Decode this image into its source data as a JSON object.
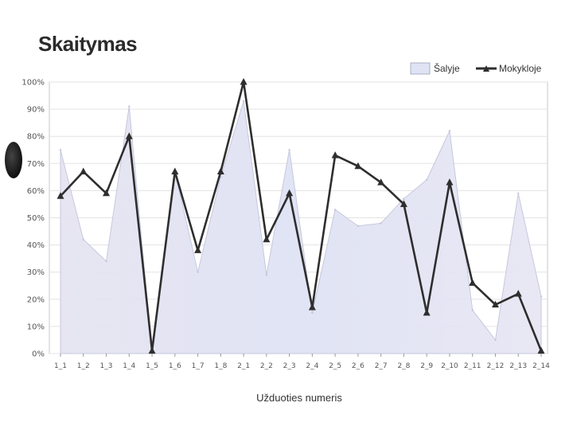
{
  "chart_data": {
    "type": "line",
    "title": "Skaitymas",
    "xlabel": "Užduoties numeris",
    "ylabel": "",
    "ylim": [
      0,
      1
    ],
    "y_ticks": [
      "0%",
      "10%",
      "20%",
      "30%",
      "40%",
      "50%",
      "60%",
      "70%",
      "80%",
      "90%",
      "100%"
    ],
    "categories": [
      "1_1",
      "1_2",
      "1_3",
      "1_4",
      "1_5",
      "1_6",
      "1_7",
      "1_8",
      "2_1",
      "2_2",
      "2_3",
      "2_4",
      "2_5",
      "2_6",
      "2_7",
      "2_8",
      "2_9",
      "2_10",
      "2_11",
      "2_12",
      "2_13",
      "2_14"
    ],
    "series": [
      {
        "name": "Šalyje",
        "type": "area",
        "color": "#d9dcef",
        "values": [
          0.75,
          0.42,
          0.34,
          0.91,
          0.01,
          0.67,
          0.3,
          0.65,
          0.93,
          0.29,
          0.75,
          0.15,
          0.53,
          0.47,
          0.48,
          0.57,
          0.64,
          0.82,
          0.16,
          0.05,
          0.59,
          0.21
        ]
      },
      {
        "name": "Mokykloje",
        "type": "line",
        "color": "#2e2e2e",
        "values": [
          0.58,
          0.67,
          0.59,
          0.8,
          0.01,
          0.67,
          0.38,
          0.67,
          1.0,
          0.42,
          0.59,
          0.17,
          0.73,
          0.69,
          0.63,
          0.55,
          0.15,
          0.63,
          0.26,
          0.18,
          0.22,
          0.01
        ]
      }
    ],
    "grid": true,
    "legend_position": "top-right"
  }
}
